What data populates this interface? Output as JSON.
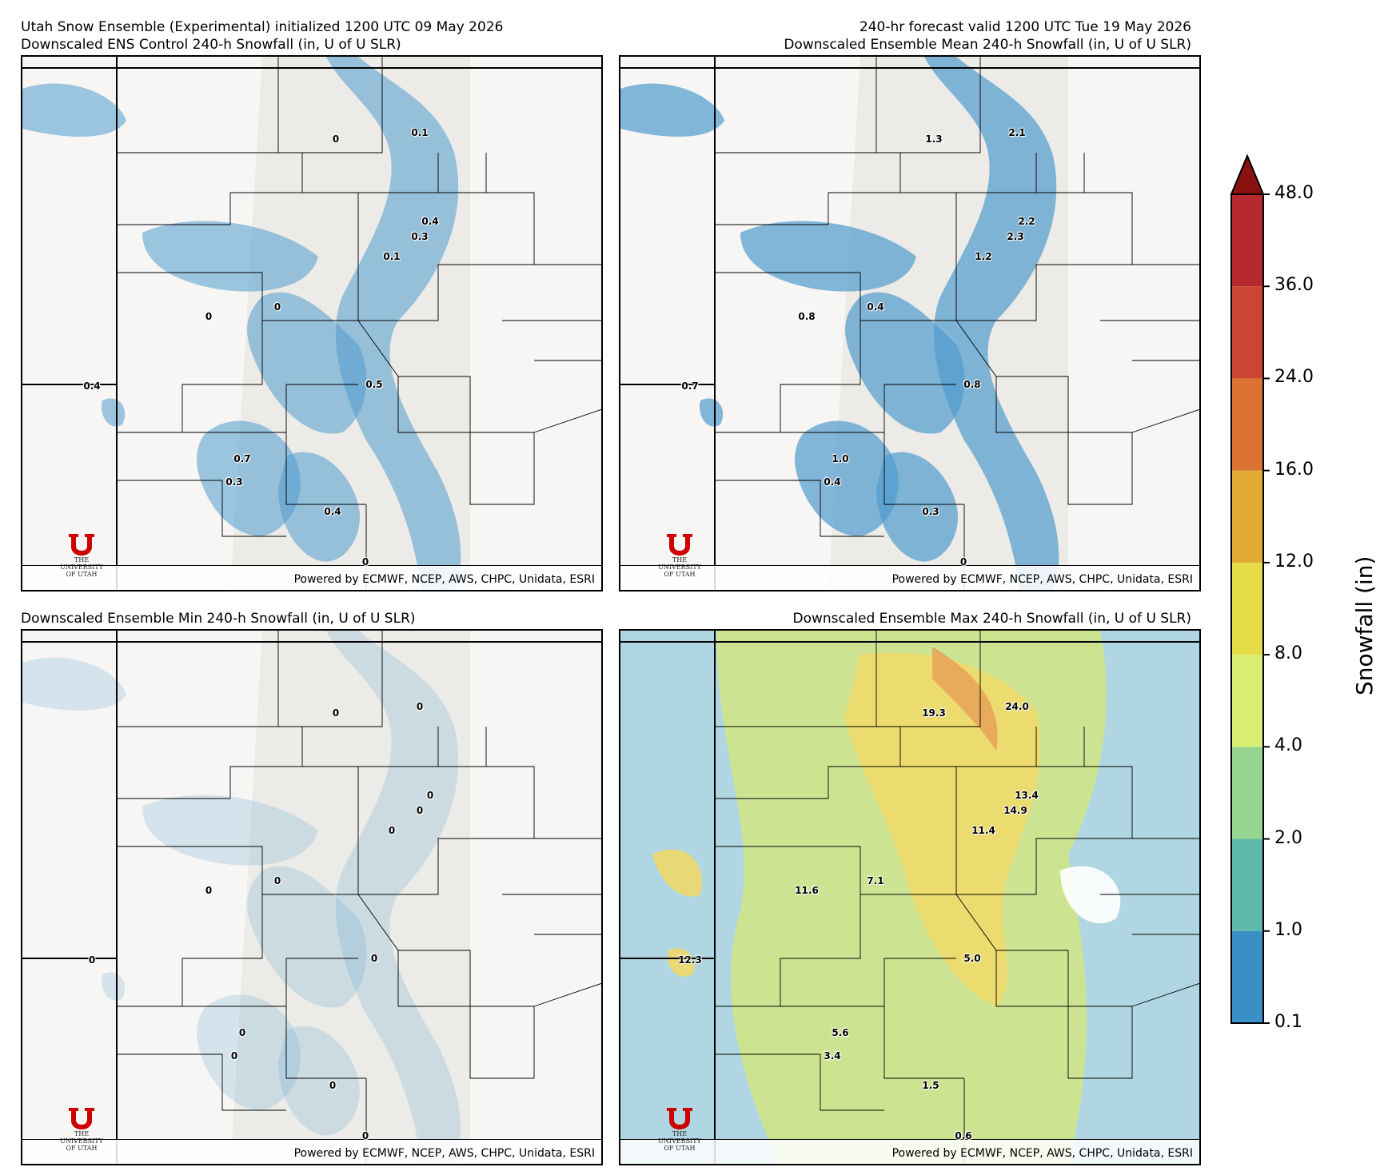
{
  "headers": {
    "top_left_line1": "Utah Snow Ensemble (Experimental) initialized 1200 UTC 09 May 2026",
    "top_left_line2": "Downscaled ENS Control 240-h Snowfall (in, U of U SLR)",
    "top_right_line1": "240-hr forecast valid 1200 UTC Tue 19 May 2026",
    "top_right_line2": "Downscaled Ensemble Mean 240-h Snowfall (in, U of U SLR)",
    "bottom_left": "Downscaled Ensemble Min 240-h Snowfall (in, U of U SLR)",
    "bottom_right": "Downscaled Ensemble Max 240-h Snowfall (in, U of U SLR)"
  },
  "credit": "Powered by ECMWF, NCEP, AWS, CHPC, Unidata, ESRI",
  "logo": {
    "line1": "THE",
    "line2": "UNIVERSITY",
    "line3": "OF UTAH"
  },
  "panels": [
    {
      "id": "control",
      "values": [
        "0",
        "0.1",
        "0.4",
        "0.3",
        "0.1",
        "0",
        "0",
        "0.4",
        "0.5",
        "0.7",
        "0.3",
        "0.4",
        "0"
      ]
    },
    {
      "id": "mean",
      "values": [
        "1.3",
        "2.1",
        "2.2",
        "2.3",
        "1.2",
        "0.8",
        "0.4",
        "0.7",
        "0.8",
        "1.0",
        "0.4",
        "0.3",
        "0"
      ]
    },
    {
      "id": "min",
      "values": [
        "0",
        "0",
        "0",
        "0",
        "0",
        "0",
        "0",
        "0",
        "0",
        "0",
        "0",
        "0",
        "0"
      ]
    },
    {
      "id": "max",
      "values": [
        "19.3",
        "24.0",
        "13.4",
        "14.9",
        "11.4",
        "11.6",
        "7.1",
        "12.3",
        "5.0",
        "5.6",
        "3.4",
        "1.5",
        "0.6"
      ]
    }
  ],
  "colorbar": {
    "title": "Snowfall (in)",
    "ticks": [
      "0.1",
      "1.0",
      "2.0",
      "4.0",
      "8.0",
      "12.0",
      "16.0",
      "24.0",
      "36.0",
      "48.0"
    ],
    "colors": [
      "#3a8fc7",
      "#5eb8ac",
      "#95d58f",
      "#d8ef72",
      "#e6dc46",
      "#e2aa33",
      "#d9732f",
      "#cc4533",
      "#b5292f"
    ],
    "extend_color": "#8b1010"
  }
}
